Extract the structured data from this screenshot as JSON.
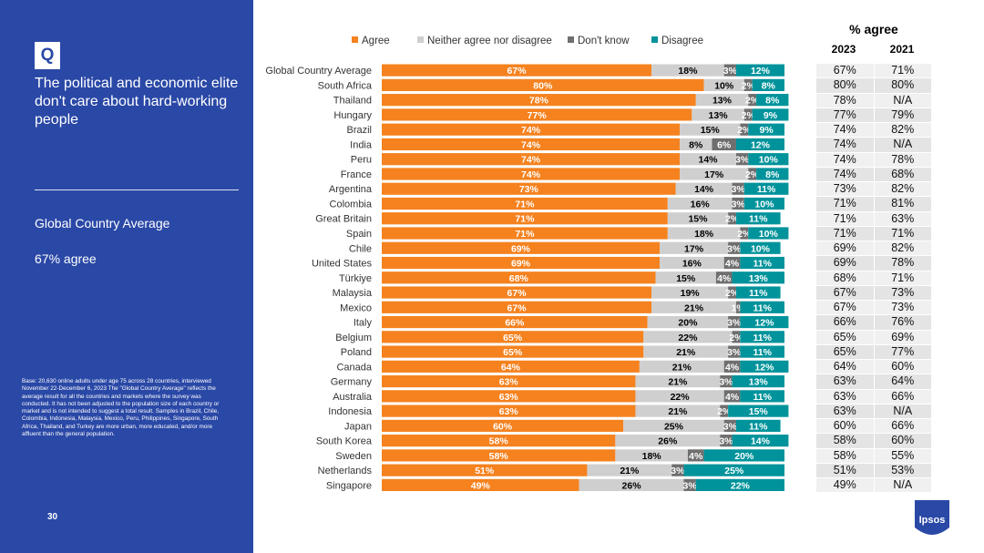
{
  "sidebar": {
    "q_label": "Q",
    "question": "The political and economic elite don't care about hard-working people",
    "highlight_title": "Global Country Average",
    "highlight_value": "67% agree",
    "base_note": "Base: 20,630 online adults under age 75 across 28 countries, interviewed November 22-December 6, 2023 The \"Global Country Average\" reflects the average result for all the countries and markets where the survey was conducted. It has not been adjusted to the population size of each country or market and is not intended to suggest a total result. Samples in Brazil, Chile, Colombia, Indonesia, Malaysia, Mexico, Peru, Philippines, Singapore, South Africa, Thailand, and Turkey are more urban, more educated, and/or more affluent than the general population.",
    "page_number": "30"
  },
  "logo_text": "Ipsos",
  "colors": {
    "agree": "#f5821f",
    "neither": "#cfcfcf",
    "dont_know": "#6f6f6f",
    "disagree": "#00939b",
    "panel": "#2a48a6"
  },
  "chart_data": {
    "type": "bar",
    "orientation": "horizontal",
    "stacked": true,
    "categories": [
      "Global Country Average",
      "South Africa",
      "Thailand",
      "Hungary",
      "Brazil",
      "India",
      "Peru",
      "France",
      "Argentina",
      "Colombia",
      "Great Britain",
      "Spain",
      "Chile",
      "United States",
      "Türkiye",
      "Malaysia",
      "Mexico",
      "Italy",
      "Belgium",
      "Poland",
      "Canada",
      "Germany",
      "Australia",
      "Indonesia",
      "Japan",
      "South Korea",
      "Sweden",
      "Netherlands",
      "Singapore"
    ],
    "series": [
      {
        "name": "Agree",
        "values": [
          67,
          80,
          78,
          77,
          74,
          74,
          74,
          74,
          73,
          71,
          71,
          71,
          69,
          69,
          68,
          67,
          67,
          66,
          65,
          65,
          64,
          63,
          63,
          63,
          60,
          58,
          58,
          51,
          49
        ]
      },
      {
        "name": "Neither agree nor disagree",
        "values": [
          18,
          10,
          13,
          13,
          15,
          8,
          14,
          17,
          14,
          16,
          15,
          18,
          17,
          16,
          15,
          19,
          21,
          20,
          22,
          21,
          21,
          21,
          22,
          21,
          25,
          26,
          18,
          21,
          26
        ]
      },
      {
        "name": "Don't know",
        "values": [
          3,
          2,
          2,
          2,
          2,
          6,
          3,
          2,
          3,
          3,
          2,
          2,
          3,
          4,
          4,
          2,
          1,
          3,
          2,
          3,
          4,
          3,
          4,
          2,
          3,
          3,
          4,
          3,
          3
        ]
      },
      {
        "name": "Disagree",
        "values": [
          12,
          8,
          8,
          9,
          9,
          12,
          10,
          8,
          11,
          10,
          11,
          10,
          10,
          11,
          13,
          11,
          11,
          12,
          11,
          11,
          12,
          13,
          11,
          15,
          11,
          14,
          20,
          25,
          22
        ]
      }
    ],
    "legend_position": "top",
    "xlim": [
      0,
      100
    ]
  },
  "table": {
    "title": "% agree",
    "col_headers": [
      "2023",
      "2021"
    ],
    "rows": [
      [
        "67%",
        "71%"
      ],
      [
        "80%",
        "80%"
      ],
      [
        "78%",
        "N/A"
      ],
      [
        "77%",
        "79%"
      ],
      [
        "74%",
        "82%"
      ],
      [
        "74%",
        "N/A"
      ],
      [
        "74%",
        "78%"
      ],
      [
        "74%",
        "68%"
      ],
      [
        "73%",
        "82%"
      ],
      [
        "71%",
        "81%"
      ],
      [
        "71%",
        "63%"
      ],
      [
        "71%",
        "71%"
      ],
      [
        "69%",
        "82%"
      ],
      [
        "69%",
        "78%"
      ],
      [
        "68%",
        "71%"
      ],
      [
        "67%",
        "73%"
      ],
      [
        "67%",
        "73%"
      ],
      [
        "66%",
        "76%"
      ],
      [
        "65%",
        "69%"
      ],
      [
        "65%",
        "77%"
      ],
      [
        "64%",
        "60%"
      ],
      [
        "63%",
        "64%"
      ],
      [
        "63%",
        "66%"
      ],
      [
        "63%",
        "N/A"
      ],
      [
        "60%",
        "66%"
      ],
      [
        "58%",
        "60%"
      ],
      [
        "58%",
        "55%"
      ],
      [
        "51%",
        "53%"
      ],
      [
        "49%",
        "N/A"
      ]
    ]
  }
}
